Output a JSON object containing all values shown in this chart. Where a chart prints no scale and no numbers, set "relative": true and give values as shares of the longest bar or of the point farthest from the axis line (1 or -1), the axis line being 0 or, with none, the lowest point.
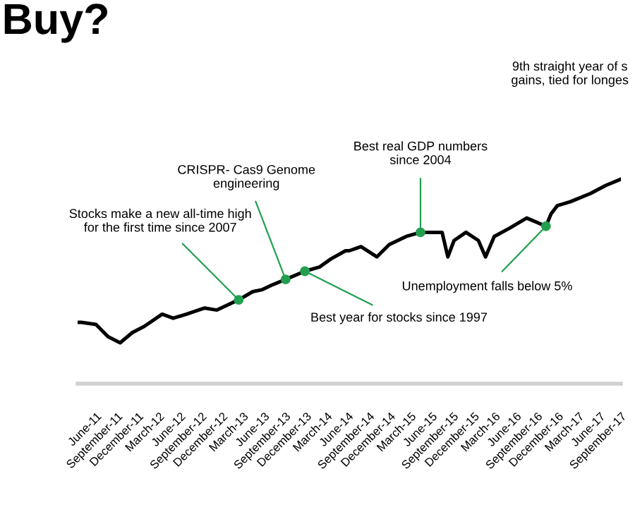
{
  "chart_data": {
    "type": "line",
    "title": "Buy?",
    "relative": true,
    "x": [
      "2011-03-13",
      "2011-03-29",
      "2011-06-01",
      "2011-07-23",
      "2011-09-14",
      "2011-11-06",
      "2011-12-28",
      "2012-03-15",
      "2012-05-02",
      "2012-06-29",
      "2012-09-16",
      "2012-11-08",
      "2013-02-11",
      "2013-04-13",
      "2013-05-25",
      "2013-07-01",
      "2013-09-03",
      "2013-11-26",
      "2014-01-28",
      "2014-03-19",
      "2014-05-22",
      "2014-06-07",
      "2014-07-28",
      "2014-10-05",
      "2014-11-28",
      "2015-02-10",
      "2015-04-13",
      "2015-07-16",
      "2015-08-10",
      "2015-09-06",
      "2015-10-28",
      "2015-12-21",
      "2016-01-21",
      "2016-02-28",
      "2016-05-04",
      "2016-07-18",
      "2016-10-10",
      "2016-11-01",
      "2016-11-28",
      "2017-01-25",
      "2017-04-22",
      "2017-06-28",
      "2017-09-01"
    ],
    "series": [
      {
        "color": "#000000",
        "values": [
          0.3,
          0.3,
          0.29,
          0.23,
          0.2,
          0.25,
          0.28,
          0.34,
          0.32,
          0.34,
          0.37,
          0.36,
          0.41,
          0.45,
          0.46,
          0.48,
          0.51,
          0.55,
          0.57,
          0.61,
          0.65,
          0.65,
          0.67,
          0.62,
          0.68,
          0.72,
          0.74,
          0.74,
          0.62,
          0.7,
          0.74,
          0.7,
          0.62,
          0.72,
          0.76,
          0.81,
          0.77,
          0.83,
          0.87,
          0.89,
          0.93,
          0.97,
          1.0
        ]
      }
    ],
    "xticks": [
      {
        "value": "2011-06-01",
        "label": "June-11"
      },
      {
        "value": "2011-09-01",
        "label": "September-11"
      },
      {
        "value": "2011-12-01",
        "label": "December-11"
      },
      {
        "value": "2012-03-01",
        "label": "March-12"
      },
      {
        "value": "2012-06-01",
        "label": "June-12"
      },
      {
        "value": "2012-09-01",
        "label": "September-12"
      },
      {
        "value": "2012-12-01",
        "label": "December-12"
      },
      {
        "value": "2013-03-01",
        "label": "March-13"
      },
      {
        "value": "2013-06-01",
        "label": "June-13"
      },
      {
        "value": "2013-09-01",
        "label": "September-13"
      },
      {
        "value": "2013-12-01",
        "label": "December-13"
      },
      {
        "value": "2014-03-01",
        "label": "March-14"
      },
      {
        "value": "2014-06-01",
        "label": "June-14"
      },
      {
        "value": "2014-09-01",
        "label": "September-14"
      },
      {
        "value": "2014-12-01",
        "label": "December-14"
      },
      {
        "value": "2015-03-01",
        "label": "March-15"
      },
      {
        "value": "2015-06-01",
        "label": "June-15"
      },
      {
        "value": "2015-09-01",
        "label": "September-15"
      },
      {
        "value": "2015-12-01",
        "label": "December-15"
      },
      {
        "value": "2016-03-01",
        "label": "March-16"
      },
      {
        "value": "2016-06-01",
        "label": "June-16"
      },
      {
        "value": "2016-09-01",
        "label": "September-16"
      },
      {
        "value": "2016-12-01",
        "label": "December-16"
      },
      {
        "value": "2017-03-01",
        "label": "March-17"
      },
      {
        "value": "2017-06-01",
        "label": "June-17"
      },
      {
        "value": "2017-09-01",
        "label": "September-17"
      }
    ],
    "xlim": [
      "2011-03-13",
      "2017-09-01"
    ],
    "annotations": [
      {
        "text": "Stocks make a new all-time high\nfor the first time since 2007",
        "x": "2013-02-11",
        "y": 0.41
      },
      {
        "text": "CRISPR- Cas9 Genome\nengineering",
        "x": "2013-09-03",
        "y": 0.51
      },
      {
        "text": "Best year for stocks since 1997",
        "x": "2013-11-26",
        "y": 0.55
      },
      {
        "text": "Best real GDP numbers\nsince 2004",
        "x": "2015-04-13",
        "y": 0.74
      },
      {
        "text": "Unemployment falls below 5%",
        "x": "2016-10-10",
        "y": 0.77
      },
      "9th straight year of s\ngains, tied for longes"
    ],
    "grid": false,
    "legend": false
  }
}
